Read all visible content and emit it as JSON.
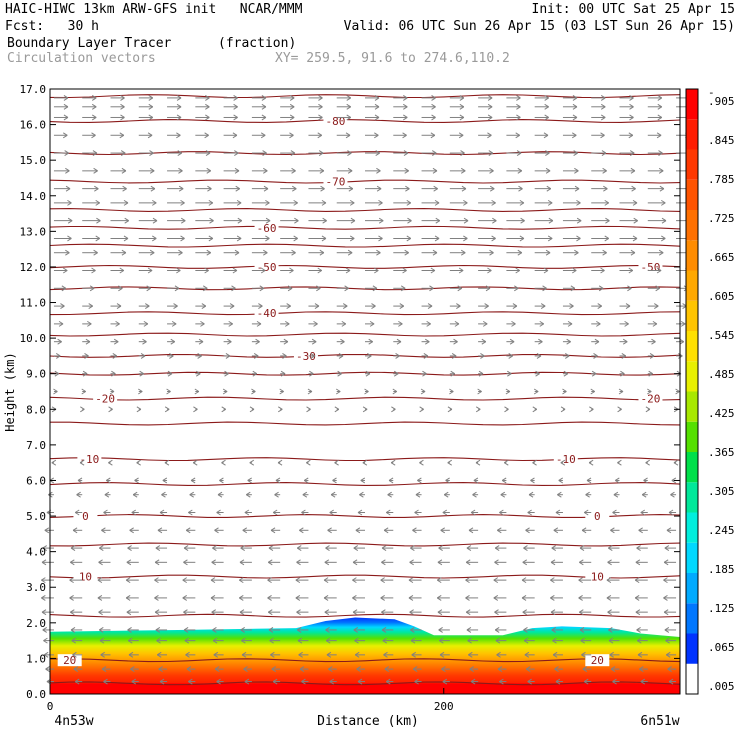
{
  "header": {
    "line1_left": "HAIC-HIWC 13km ARW-GFS init   NCAR/MMM",
    "line1_right": "Init: 00 UTC Sat 25 Apr 15",
    "line2_left": "Fcst:   30 h",
    "line2_right": "Valid: 06 UTC Sun 26 Apr 15 (03 LST Sun 26 Apr 15)",
    "field_name": "Boundary Layer Tracer",
    "field_units": "(fraction)",
    "vector_name": "Circulation vectors",
    "xy_range": "XY= 259.5, 91.6 to 274.6,110.2"
  },
  "colors": {
    "contour": "#8b1a1a",
    "vector": "#808080",
    "tracer_scale": [
      "#ffffff",
      "#0033ff",
      "#0077ff",
      "#00aaff",
      "#00d8ff",
      "#00eedd",
      "#00e89a",
      "#00e04a",
      "#55e000",
      "#a8e800",
      "#e8f000",
      "#ffe000",
      "#ffc400",
      "#ffa800",
      "#ff8c00",
      "#ff7000",
      "#ff5400",
      "#ff3800",
      "#ff1c00",
      "#ff0000"
    ]
  },
  "chart_data": {
    "type": "vertical cross-section",
    "xlabel": "Distance (km)",
    "ylabel": "Height (km)",
    "x_start_label": "4n53w",
    "x_end_label": "6n51w",
    "xlim": [
      0,
      320
    ],
    "ylim": [
      0,
      17
    ],
    "x_ticks": [
      0,
      200
    ],
    "y_ticks": [
      "0.0",
      "1.0",
      "2.0",
      "3.0",
      "4.0",
      "5.0",
      "6.0",
      "7.0",
      "8.0",
      "9.0",
      "10.0",
      "11.0",
      "12.0",
      "13.0",
      "14.0",
      "15.0",
      "16.0",
      "17.0"
    ],
    "colorbar_labels": [
      ".005",
      ".065",
      ".125",
      ".185",
      ".245",
      ".305",
      ".365",
      ".425",
      ".485",
      ".545",
      ".605",
      ".665",
      ".725",
      ".785",
      ".845",
      ".905",
      "-"
    ],
    "temperature_contours": [
      {
        "label": "-80",
        "height_km": 16.1,
        "labels_at_km": [
          145
        ]
      },
      {
        "label": "-70",
        "height_km": 14.4,
        "labels_at_km": [
          145
        ]
      },
      {
        "label": "-60",
        "height_km": 13.1,
        "labels_at_km": [
          110
        ]
      },
      {
        "label": "-50",
        "height_km": 12.0,
        "labels_at_km": [
          110,
          305
        ]
      },
      {
        "label": "-40",
        "height_km": 10.7,
        "labels_at_km": [
          110
        ]
      },
      {
        "label": "-30",
        "height_km": 9.5,
        "labels_at_km": [
          130
        ]
      },
      {
        "label": "-20",
        "height_km": 8.3,
        "labels_at_km": [
          28,
          305
        ]
      },
      {
        "label": "-10",
        "height_km": 6.6,
        "labels_at_km": [
          20,
          262
        ]
      },
      {
        "label": "0",
        "height_km": 5.0,
        "labels_at_km": [
          18,
          278
        ]
      },
      {
        "label": "10",
        "height_km": 3.3,
        "labels_at_km": [
          18,
          278
        ]
      },
      {
        "label": "20",
        "height_km": 0.95,
        "labels_at_km": [
          10,
          278
        ]
      }
    ],
    "unlabeled_contour_heights_km": [
      0.3,
      2.2,
      4.2,
      5.9,
      7.6,
      9.0,
      10.1,
      11.4,
      12.6,
      13.6,
      15.2,
      16.8
    ],
    "boundary_layer_top_km": [
      [
        0,
        1.75
      ],
      [
        65,
        1.8
      ],
      [
        125,
        1.85
      ],
      [
        140,
        2.05
      ],
      [
        155,
        2.15
      ],
      [
        175,
        2.1
      ],
      [
        185,
        1.9
      ],
      [
        195,
        1.65
      ],
      [
        230,
        1.65
      ],
      [
        245,
        1.85
      ],
      [
        260,
        1.9
      ],
      [
        285,
        1.85
      ],
      [
        300,
        1.7
      ],
      [
        320,
        1.6
      ]
    ],
    "wind_profile": [
      {
        "z_km": 16.75,
        "u": 1.0
      },
      {
        "z_km": 16.5,
        "u": 1.0
      },
      {
        "z_km": 16.2,
        "u": 1.0
      },
      {
        "z_km": 15.7,
        "u": 0.95
      },
      {
        "z_km": 15.2,
        "u": 1.05
      },
      {
        "z_km": 14.7,
        "u": 1.1
      },
      {
        "z_km": 14.2,
        "u": 1.15
      },
      {
        "z_km": 13.8,
        "u": 1.25
      },
      {
        "z_km": 13.3,
        "u": 1.3
      },
      {
        "z_km": 12.8,
        "u": 1.25
      },
      {
        "z_km": 12.4,
        "u": 1.1
      },
      {
        "z_km": 11.9,
        "u": 0.95
      },
      {
        "z_km": 11.4,
        "u": 0.85
      },
      {
        "z_km": 10.9,
        "u": 0.75
      },
      {
        "z_km": 10.4,
        "u": 0.65
      },
      {
        "z_km": 9.9,
        "u": 0.55
      },
      {
        "z_km": 9.5,
        "u": 0.45
      },
      {
        "z_km": 9.0,
        "u": 0.35
      },
      {
        "z_km": 8.5,
        "u": 0.25
      },
      {
        "z_km": 8.0,
        "u": 0.15
      },
      {
        "z_km": 7.5,
        "u": 0.08
      },
      {
        "z_km": 7.0,
        "u": 0.05
      },
      {
        "z_km": 6.5,
        "u": -0.15
      },
      {
        "z_km": 6.0,
        "u": -0.3
      },
      {
        "z_km": 5.6,
        "u": -0.4
      },
      {
        "z_km": 5.1,
        "u": -0.5
      },
      {
        "z_km": 4.6,
        "u": -0.65
      },
      {
        "z_km": 4.1,
        "u": -0.8
      },
      {
        "z_km": 3.7,
        "u": -0.85
      },
      {
        "z_km": 3.2,
        "u": -0.9
      },
      {
        "z_km": 2.7,
        "u": -0.9
      },
      {
        "z_km": 2.3,
        "u": -0.85
      },
      {
        "z_km": 1.8,
        "u": -0.8
      },
      {
        "z_km": 1.5,
        "u": -0.75
      },
      {
        "z_km": 1.1,
        "u": -0.7
      },
      {
        "z_km": 0.7,
        "u": -0.6
      },
      {
        "z_km": 0.35,
        "u": -0.5
      }
    ]
  }
}
